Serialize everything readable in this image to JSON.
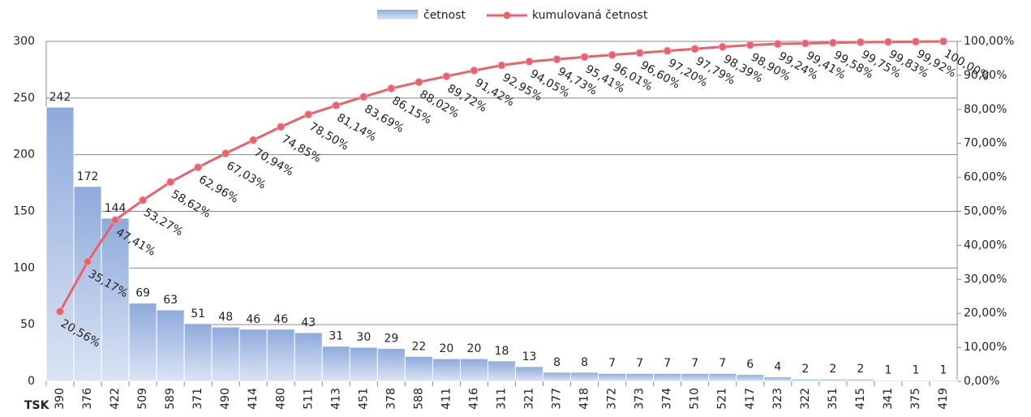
{
  "chart_data": {
    "type": "pareto",
    "x_label": "TSK",
    "categories": [
      "390",
      "376",
      "422",
      "509",
      "589",
      "371",
      "490",
      "414",
      "480",
      "511",
      "413",
      "451",
      "378",
      "588",
      "411",
      "416",
      "311",
      "321",
      "377",
      "418",
      "372",
      "373",
      "374",
      "510",
      "521",
      "417",
      "323",
      "322",
      "351",
      "415",
      "341",
      "375",
      "419"
    ],
    "series": [
      {
        "name": "četnost",
        "color": "#8eaadb",
        "values": [
          242,
          172,
          144,
          69,
          63,
          51,
          48,
          46,
          46,
          43,
          31,
          30,
          29,
          22,
          20,
          20,
          18,
          13,
          8,
          8,
          7,
          7,
          7,
          7,
          7,
          6,
          4,
          2,
          2,
          2,
          1,
          1,
          1
        ]
      },
      {
        "name": "kumulovaná četnost",
        "color": "#e8626b",
        "axis": "y2",
        "values": [
          20.56,
          35.17,
          47.41,
          53.27,
          58.62,
          62.96,
          67.03,
          70.94,
          74.85,
          78.5,
          81.14,
          83.69,
          86.15,
          88.02,
          89.72,
          91.42,
          92.95,
          94.05,
          94.73,
          95.41,
          96.01,
          96.6,
          97.2,
          97.79,
          98.39,
          98.9,
          99.24,
          99.41,
          99.58,
          99.75,
          99.83,
          99.92,
          100.0
        ],
        "value_labels": [
          "20,56%",
          "35,17%",
          "47,41%",
          "53,27%",
          "58,62%",
          "62,96%",
          "67,03%",
          "70,94%",
          "74,85%",
          "78,50%",
          "81,14%",
          "83,69%",
          "86,15%",
          "88,02%",
          "89,72%",
          "91,42%",
          "92,95%",
          "94,05%",
          "94,73%",
          "95,41%",
          "96,01%",
          "96,60%",
          "97,20%",
          "97,79%",
          "98,39%",
          "98,90%",
          "99,24%",
          "99,41%",
          "99,58%",
          "99,75%",
          "99,83%",
          "99,92%",
          "100,00%"
        ]
      }
    ],
    "ylim": [
      0,
      300
    ],
    "yticks": [
      0,
      50,
      100,
      150,
      200,
      250,
      300
    ],
    "y2lim": [
      0,
      100
    ],
    "y2ticks": [
      {
        "value": 0,
        "label": "0,00%"
      },
      {
        "value": 10,
        "label": "10,00%"
      },
      {
        "value": 20,
        "label": "20,00%"
      },
      {
        "value": 30,
        "label": "30,00%"
      },
      {
        "value": 40,
        "label": "40,00%"
      },
      {
        "value": 50,
        "label": "50,00%"
      },
      {
        "value": 60,
        "label": "60,00%"
      },
      {
        "value": 70,
        "label": "70,00%"
      },
      {
        "value": 80,
        "label": "80,00%"
      },
      {
        "value": 90,
        "label": "90,00%"
      },
      {
        "value": 100,
        "label": "100,00%"
      }
    ],
    "grid": true,
    "legend": "top"
  }
}
